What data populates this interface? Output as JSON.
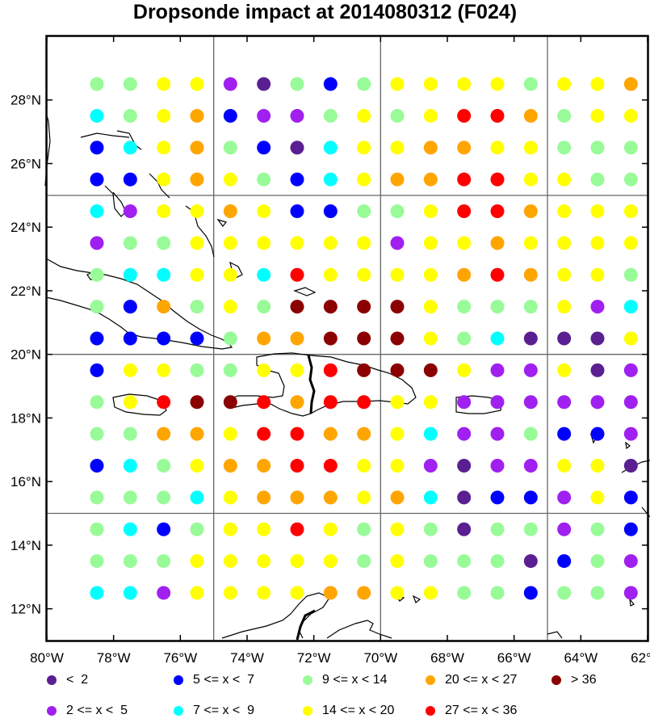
{
  "title": "Dropsonde impact at 2014080312 (F024)",
  "chart_data": {
    "type": "scatter",
    "xlim": [
      -80,
      -62
    ],
    "ylim": [
      11,
      30
    ],
    "x_ticks": [
      {
        "value": -80,
        "label": "80°W"
      },
      {
        "value": -78,
        "label": "78°W"
      },
      {
        "value": -76,
        "label": "76°W"
      },
      {
        "value": -74,
        "label": "74°W"
      },
      {
        "value": -72,
        "label": "72°W"
      },
      {
        "value": -70,
        "label": "70°W"
      },
      {
        "value": -68,
        "label": "68°W"
      },
      {
        "value": -66,
        "label": "66°W"
      },
      {
        "value": -64,
        "label": "64°W"
      },
      {
        "value": -62,
        "label": "62°W"
      }
    ],
    "y_ticks": [
      {
        "value": 12,
        "label": "12°N"
      },
      {
        "value": 14,
        "label": "14°N"
      },
      {
        "value": 16,
        "label": "16°N"
      },
      {
        "value": 18,
        "label": "18°N"
      },
      {
        "value": 20,
        "label": "20°N"
      },
      {
        "value": 22,
        "label": "22°N"
      },
      {
        "value": 24,
        "label": "24°N"
      },
      {
        "value": 26,
        "label": "26°N"
      },
      {
        "value": 28,
        "label": "28°N"
      }
    ],
    "grid": {
      "lon": [
        -80,
        -75,
        -70,
        -65
      ],
      "lat": [
        15,
        20,
        25
      ]
    },
    "lons": [
      -78.5,
      -77.5,
      -76.5,
      -75.5,
      -74.5,
      -73.5,
      -72.5,
      -71.5,
      -70.5,
      -69.5,
      -68.5,
      -67.5,
      -66.5,
      -65.5,
      -64.5,
      -63.5,
      -62.5
    ],
    "lats": [
      28.5,
      27.5,
      26.5,
      25.5,
      24.5,
      23.5,
      22.5,
      21.5,
      20.5,
      19.5,
      18.5,
      17.5,
      16.5,
      15.5,
      14.5,
      13.5,
      12.5
    ],
    "category_grid": [
      "EEFFAHEBEFFFFEFFG",
      "CEFGBAAEFEFIIGEFF",
      "BCFGEBHCFFGGFFEEE",
      "BBFGFEBCFGGIIFFEE",
      "CAFFGFBBEEFIIGFFF",
      "AEEFFFFFFAFFGFFFF",
      "ECCFFCIFFFFGIGFFE",
      "EBGEFEJJJJFEEEFAC",
      "BBBBEGGJJJFECHHHF",
      "BFFEEFFIJJJFAAFHA",
      "EFIJJIGIIFFAAAAAA",
      "EEGGFIIGGFCAAEBBA",
      "BCEFGGIIFFAHAAFFH",
      "EEECFGGGFGCHBBAFB",
      "ECBEFFIFEFEHEEAEB",
      "EEEFFFFFEFEEEHBEA",
      "CCAFFFFGGFFEEBEEA"
    ],
    "categories": [
      {
        "key": "H",
        "label": "<  2",
        "color": "#5a1f91"
      },
      {
        "key": "A",
        "label": "2 <= x <  5",
        "color": "#a020f0"
      },
      {
        "key": "B",
        "label": "5 <= x <  7",
        "color": "#0000ff"
      },
      {
        "key": "C",
        "label": "7 <= x <  9",
        "color": "#00ffff"
      },
      {
        "key": "E",
        "label": "9 <= x < 14",
        "color": "#98fb98"
      },
      {
        "key": "F",
        "label": "14 <= x < 20",
        "color": "#ffff00"
      },
      {
        "key": "G",
        "label": "20 <= x < 27",
        "color": "#ffa500"
      },
      {
        "key": "I",
        "label": "27 <= x < 36",
        "color": "#ff0000"
      },
      {
        "key": "J",
        "label": "> 36",
        "color": "#8b0000"
      }
    ]
  },
  "legend": {
    "columns": [
      [
        "H",
        "A"
      ],
      [
        "B",
        "C"
      ],
      [
        "E",
        "F"
      ],
      [
        "G",
        "I"
      ],
      [
        "J"
      ]
    ]
  }
}
